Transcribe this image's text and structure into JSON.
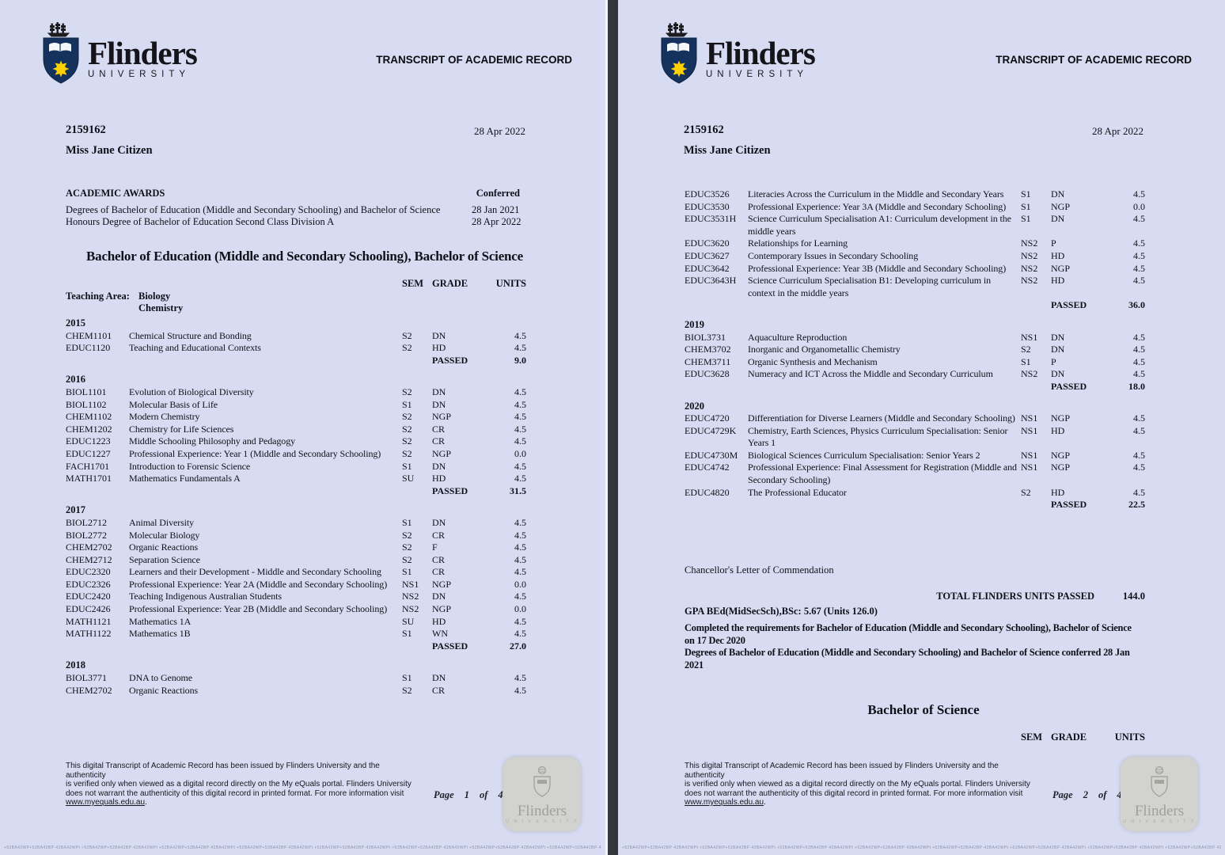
{
  "colors": {
    "page_bg": "#d8dcf2",
    "divider": "#33373c",
    "shield_navy": "#15325e",
    "sun_yellow": "#ffd200",
    "watermark_bg": "#d2d3cf"
  },
  "logo": {
    "name": "Flinders",
    "university": "UNIVERSITY"
  },
  "header_title": "TRANSCRIPT OF ACADEMIC RECORD",
  "student": {
    "id": "2159162",
    "name": "Miss Jane Citizen",
    "date": "28 Apr 2022"
  },
  "awards": {
    "heading": "ACADEMIC AWARDS",
    "conferred_label": "Conferred",
    "rows": [
      {
        "text": "Degrees of Bachelor of Education (Middle and Secondary Schooling) and Bachelor of Science",
        "date": "28 Jan 2021"
      },
      {
        "text": "Honours Degree of Bachelor of Education Second Class Division A",
        "date": "28 Apr 2022"
      }
    ]
  },
  "program1": {
    "title": "Bachelor of Education (Middle and Secondary Schooling), Bachelor of Science",
    "columns": {
      "sem": "SEM",
      "grade": "GRADE",
      "units": "UNITS"
    },
    "teaching_area_label": "Teaching Area:",
    "teaching_areas": [
      "Biology",
      "Chemistry"
    ],
    "passed_label": "PASSED",
    "page1_blocks": [
      {
        "t": "y",
        "v": "2015"
      },
      {
        "t": "c",
        "code": "CHEM1101",
        "title": "Chemical Structure and Bonding",
        "sem": "S2",
        "grade": "DN",
        "units": "4.5"
      },
      {
        "t": "c",
        "code": "EDUC1120",
        "title": "Teaching and Educational Contexts",
        "sem": "S2",
        "grade": "HD",
        "units": "4.5"
      },
      {
        "t": "p",
        "units": "9.0"
      },
      {
        "t": "y",
        "v": "2016"
      },
      {
        "t": "c",
        "code": "BIOL1101",
        "title": "Evolution of Biological Diversity",
        "sem": "S2",
        "grade": "DN",
        "units": "4.5"
      },
      {
        "t": "c",
        "code": "BIOL1102",
        "title": "Molecular Basis of Life",
        "sem": "S1",
        "grade": "DN",
        "units": "4.5"
      },
      {
        "t": "c",
        "code": "CHEM1102",
        "title": "Modern Chemistry",
        "sem": "S2",
        "grade": "NGP",
        "units": "4.5"
      },
      {
        "t": "c",
        "code": "CHEM1202",
        "title": "Chemistry for Life Sciences",
        "sem": "S2",
        "grade": "CR",
        "units": "4.5"
      },
      {
        "t": "c",
        "code": "EDUC1223",
        "title": "Middle Schooling Philosophy and Pedagogy",
        "sem": "S2",
        "grade": "CR",
        "units": "4.5"
      },
      {
        "t": "c",
        "code": "EDUC1227",
        "title": "Professional Experience: Year 1 (Middle and Secondary Schooling)",
        "sem": "S2",
        "grade": "NGP",
        "units": "0.0"
      },
      {
        "t": "c",
        "code": "FACH1701",
        "title": "Introduction to Forensic Science",
        "sem": "S1",
        "grade": "DN",
        "units": "4.5"
      },
      {
        "t": "c",
        "code": "MATH1701",
        "title": "Mathematics Fundamentals A",
        "sem": "SU",
        "grade": "HD",
        "units": "4.5"
      },
      {
        "t": "p",
        "units": "31.5"
      },
      {
        "t": "y",
        "v": "2017"
      },
      {
        "t": "c",
        "code": "BIOL2712",
        "title": "Animal Diversity",
        "sem": "S1",
        "grade": "DN",
        "units": "4.5"
      },
      {
        "t": "c",
        "code": "BIOL2772",
        "title": "Molecular Biology",
        "sem": "S2",
        "grade": "CR",
        "units": "4.5"
      },
      {
        "t": "c",
        "code": "CHEM2702",
        "title": "Organic Reactions",
        "sem": "S2",
        "grade": "F",
        "units": "4.5"
      },
      {
        "t": "c",
        "code": "CHEM2712",
        "title": "Separation Science",
        "sem": "S2",
        "grade": "CR",
        "units": "4.5"
      },
      {
        "t": "c",
        "code": "EDUC2320",
        "title": "Learners and their Development - Middle and Secondary Schooling",
        "sem": "S1",
        "grade": "CR",
        "units": "4.5"
      },
      {
        "t": "c",
        "code": "EDUC2326",
        "title": "Professional Experience: Year 2A (Middle and Secondary Schooling)",
        "sem": "NS1",
        "grade": "NGP",
        "units": "0.0"
      },
      {
        "t": "c",
        "code": "EDUC2420",
        "title": "Teaching Indigenous Australian Students",
        "sem": "NS2",
        "grade": "DN",
        "units": "4.5"
      },
      {
        "t": "c",
        "code": "EDUC2426",
        "title": "Professional Experience: Year 2B (Middle and Secondary Schooling)",
        "sem": "NS2",
        "grade": "NGP",
        "units": "0.0"
      },
      {
        "t": "c",
        "code": "MATH1121",
        "title": "Mathematics 1A",
        "sem": "SU",
        "grade": "HD",
        "units": "4.5"
      },
      {
        "t": "c",
        "code": "MATH1122",
        "title": "Mathematics 1B",
        "sem": "S1",
        "grade": "WN",
        "units": "4.5"
      },
      {
        "t": "p",
        "units": "27.0"
      },
      {
        "t": "y",
        "v": "2018"
      },
      {
        "t": "c",
        "code": "BIOL3771",
        "title": "DNA to Genome",
        "sem": "S1",
        "grade": "DN",
        "units": "4.5"
      },
      {
        "t": "c",
        "code": "CHEM2702",
        "title": "Organic Reactions",
        "sem": "S2",
        "grade": "CR",
        "units": "4.5"
      }
    ],
    "page2_blocks": [
      {
        "t": "c",
        "code": "EDUC3526",
        "title": "Literacies Across the Curriculum in the Middle and Secondary Years",
        "sem": "S1",
        "grade": "DN",
        "units": "4.5"
      },
      {
        "t": "c",
        "code": "EDUC3530",
        "title": "Professional Experience: Year 3A (Middle and Secondary Schooling)",
        "sem": "S1",
        "grade": "NGP",
        "units": "0.0"
      },
      {
        "t": "c",
        "code": "EDUC3531H",
        "title": "Science Curriculum Specialisation A1: Curriculum development in the middle years",
        "sem": "S1",
        "grade": "DN",
        "units": "4.5"
      },
      {
        "t": "c",
        "code": "EDUC3620",
        "title": "Relationships for Learning",
        "sem": "NS2",
        "grade": "P",
        "units": "4.5"
      },
      {
        "t": "c",
        "code": "EDUC3627",
        "title": "Contemporary Issues in Secondary Schooling",
        "sem": "NS2",
        "grade": "HD",
        "units": "4.5"
      },
      {
        "t": "c",
        "code": "EDUC3642",
        "title": "Professional Experience: Year 3B (Middle and Secondary Schooling)",
        "sem": "NS2",
        "grade": "NGP",
        "units": "4.5"
      },
      {
        "t": "c",
        "code": "EDUC3643H",
        "title": "Science Curriculum Specialisation B1: Developing curriculum in context in the middle years",
        "sem": "NS2",
        "grade": "HD",
        "units": "4.5"
      },
      {
        "t": "p",
        "units": "36.0"
      },
      {
        "t": "y",
        "v": "2019"
      },
      {
        "t": "c",
        "code": "BIOL3731",
        "title": "Aquaculture Reproduction",
        "sem": "NS1",
        "grade": "DN",
        "units": "4.5"
      },
      {
        "t": "c",
        "code": "CHEM3702",
        "title": "Inorganic and Organometallic Chemistry",
        "sem": "S2",
        "grade": "DN",
        "units": "4.5"
      },
      {
        "t": "c",
        "code": "CHEM3711",
        "title": "Organic Synthesis and Mechanism",
        "sem": "S1",
        "grade": "P",
        "units": "4.5"
      },
      {
        "t": "c",
        "code": "EDUC3628",
        "title": "Numeracy and ICT Across the Middle and Secondary Curriculum",
        "sem": "NS2",
        "grade": "DN",
        "units": "4.5"
      },
      {
        "t": "p",
        "units": "18.0"
      },
      {
        "t": "y",
        "v": "2020"
      },
      {
        "t": "c",
        "code": "EDUC4720",
        "title": "Differentiation for Diverse Learners (Middle and Secondary Schooling)",
        "sem": "NS1",
        "grade": "NGP",
        "units": "4.5"
      },
      {
        "t": "c",
        "code": "EDUC4729K",
        "title": "Chemistry, Earth Sciences, Physics Curriculum Specialisation: Senior Years 1",
        "sem": "NS1",
        "grade": "HD",
        "units": "4.5"
      },
      {
        "t": "c",
        "code": "EDUC4730M",
        "title": "Biological Sciences Curriculum Specialisation: Senior Years 2",
        "sem": "NS1",
        "grade": "NGP",
        "units": "4.5"
      },
      {
        "t": "c",
        "code": "EDUC4742",
        "title": "Professional Experience: Final Assessment for Registration (Middle and Secondary Schooling)",
        "sem": "NS1",
        "grade": "NGP",
        "units": "4.5"
      },
      {
        "t": "c",
        "code": "EDUC4820",
        "title": "The Professional Educator",
        "sem": "S2",
        "grade": "HD",
        "units": "4.5"
      },
      {
        "t": "p",
        "units": "22.5"
      }
    ]
  },
  "summary": {
    "commendation": "Chancellor's Letter of Commendation",
    "total_label": "TOTAL FLINDERS UNITS PASSED",
    "total_value": "144.0",
    "gpa": "GPA BEd(MidSecSch),BSc: 5.67 (Units 126.0)",
    "completed_lines": [
      "Completed the requirements for Bachelor of Education (Middle and Secondary Schooling), Bachelor of Science",
      "on 17 Dec 2020",
      "Degrees of Bachelor of Education (Middle and Secondary Schooling) and Bachelor of Science  conferred 28 Jan",
      "2021"
    ]
  },
  "program2": {
    "title": "Bachelor of Science",
    "columns": {
      "sem": "SEM",
      "grade": "GRADE",
      "units": "UNITS"
    }
  },
  "footer": {
    "disclaimer_lines": [
      "This digital Transcript of Academic Record has been issued by Flinders University and the authenticity",
      "is verified only when viewed as a digital record directly on the My eQuals portal. Flinders University",
      "does not warrant the authenticity of this digital record in printed format. For more information visit"
    ],
    "link": "www.myequals.edu.au",
    "link_suffix": ".",
    "page_word": "Page",
    "of_word": "of",
    "page1_num": "1",
    "page2_num": "2",
    "total_pages": "4",
    "watermark_name": "Flinders",
    "watermark_univ": "U N I V E R S I T Y"
  },
  "microprint_token": "+52BA42WP+52BA42BP·42BA42WPt "
}
